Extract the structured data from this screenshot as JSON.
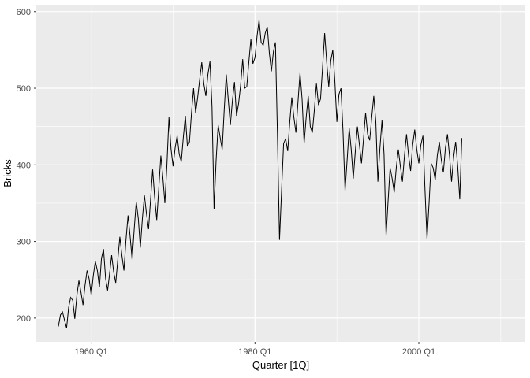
{
  "chart_data": {
    "type": "line",
    "title": "",
    "xlabel": "Quarter [1Q]",
    "ylabel": "Bricks",
    "series_name": "Bricks",
    "x_unit": "quarter",
    "x_start": 1956.0,
    "x_step": 0.25,
    "x_domain": [
      1953.3,
      2013.0
    ],
    "y_domain": [
      169,
      609
    ],
    "x_ticks": [
      {
        "value": 1960.0,
        "label": "1960 Q1"
      },
      {
        "value": 1980.0,
        "label": "1980 Q1"
      },
      {
        "value": 2000.0,
        "label": "2000 Q1"
      }
    ],
    "x_minor": [
      1970.0,
      1990.0,
      2010.0
    ],
    "y_ticks": [
      {
        "value": 200,
        "label": "200"
      },
      {
        "value": 300,
        "label": "300"
      },
      {
        "value": 400,
        "label": "400"
      },
      {
        "value": 500,
        "label": "500"
      },
      {
        "value": 600,
        "label": "600"
      }
    ],
    "y_minor": [
      250,
      350,
      450,
      550
    ],
    "grid": true,
    "legend": "none",
    "values": [
      189,
      204,
      208,
      197,
      187,
      214,
      227,
      223,
      199,
      229,
      249,
      234,
      217,
      243,
      262,
      251,
      230,
      255,
      274,
      262,
      240,
      278,
      290,
      252,
      236,
      258,
      282,
      260,
      246,
      276,
      306,
      282,
      262,
      302,
      334,
      307,
      276,
      316,
      352,
      330,
      292,
      330,
      360,
      336,
      316,
      355,
      394,
      357,
      328,
      370,
      412,
      383,
      350,
      400,
      462,
      421,
      398,
      422,
      438,
      414,
      404,
      436,
      464,
      424,
      430,
      468,
      500,
      468,
      488,
      512,
      534,
      506,
      490,
      518,
      535,
      476,
      342,
      406,
      452,
      436,
      420,
      472,
      518,
      484,
      452,
      484,
      508,
      464,
      480,
      504,
      538,
      500,
      502,
      534,
      564,
      532,
      540,
      568,
      589,
      560,
      556,
      572,
      580,
      546,
      522,
      548,
      560,
      438,
      302,
      366,
      428,
      434,
      418,
      456,
      488,
      462,
      442,
      482,
      520,
      486,
      428,
      462,
      490,
      450,
      442,
      472,
      506,
      478,
      486,
      528,
      572,
      534,
      502,
      536,
      550,
      510,
      456,
      492,
      500,
      444,
      366,
      406,
      448,
      420,
      382,
      418,
      450,
      426,
      402,
      434,
      468,
      440,
      432,
      462,
      490,
      456,
      378,
      422,
      458,
      414,
      307,
      352,
      396,
      382,
      364,
      396,
      420,
      398,
      378,
      412,
      440,
      412,
      392,
      426,
      446,
      420,
      402,
      426,
      438,
      368,
      303,
      350,
      402,
      396,
      380,
      412,
      430,
      406,
      390,
      422,
      440,
      412,
      378,
      410,
      430,
      398,
      355,
      435
    ]
  },
  "style": {
    "panel_bg": "#EBEBEB",
    "grid_color": "#FFFFFF",
    "line_color": "#000000",
    "axis_text_color": "#4D4D4D",
    "axis_title_color": "#000000",
    "tick_mark_color": "#333333",
    "background": "#FFFFFF"
  }
}
